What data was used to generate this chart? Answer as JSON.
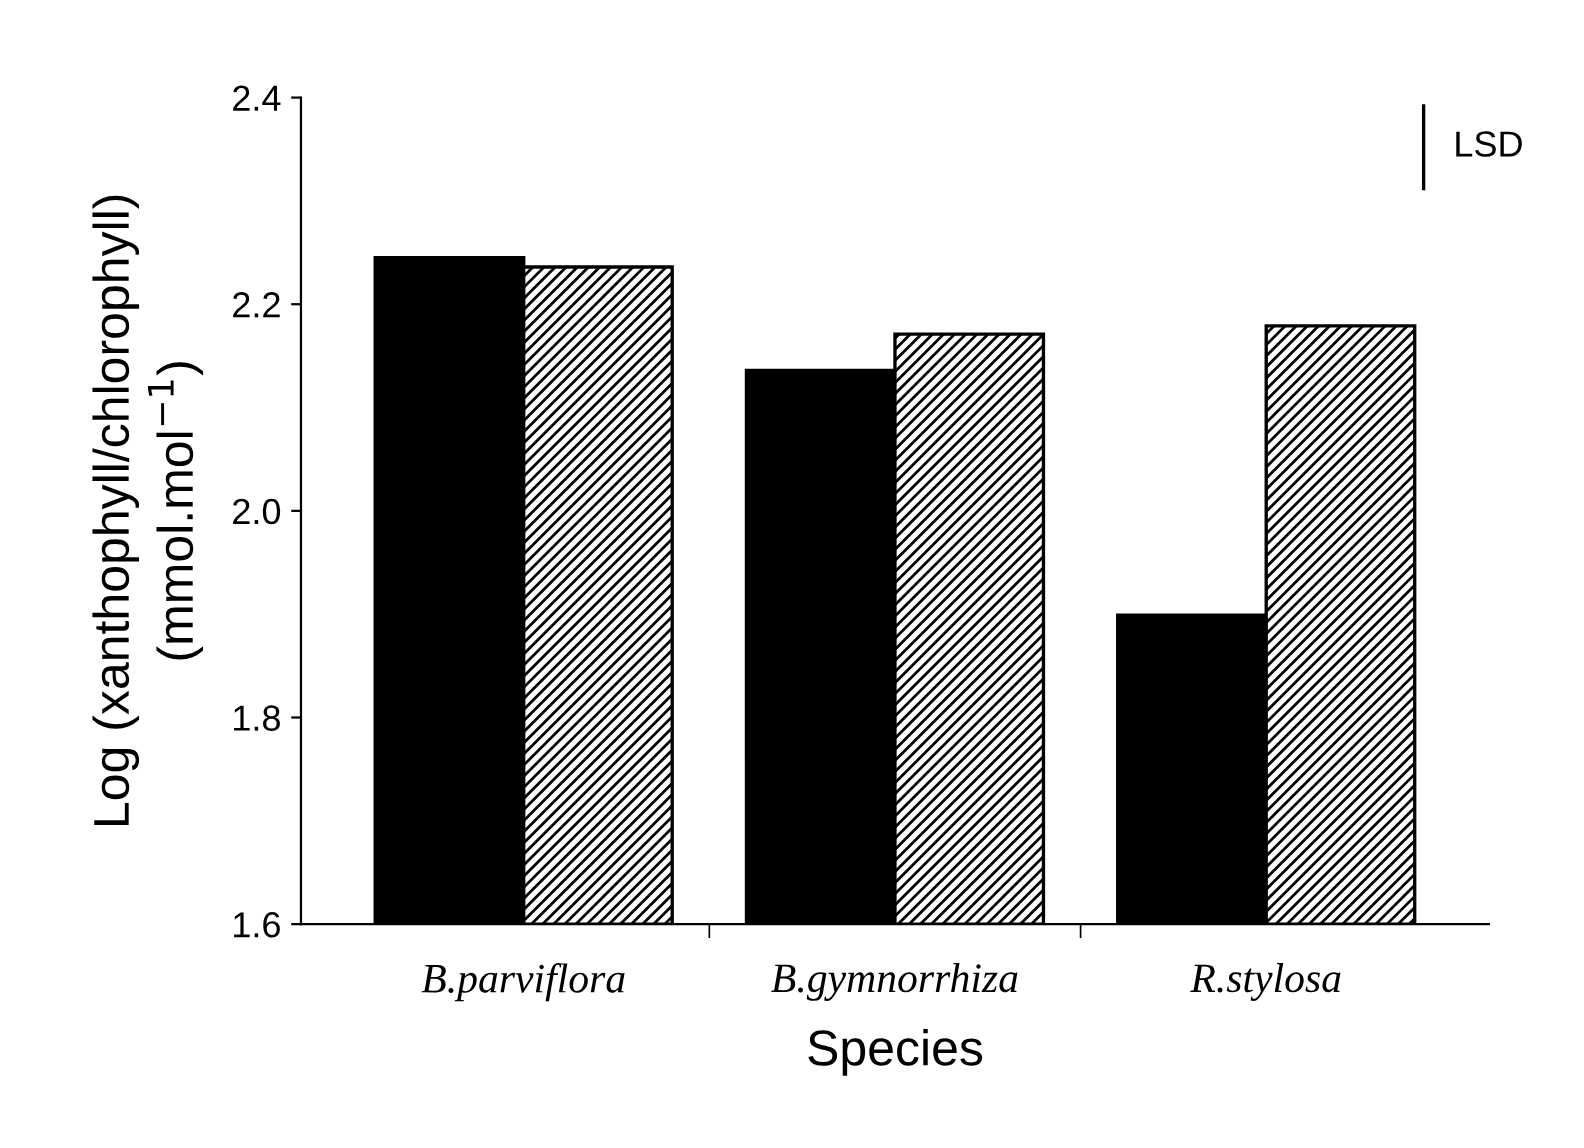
{
  "chart_data": {
    "type": "bar",
    "xlabel": "Species",
    "ylabel": "Log (xanthophyll/chlorophyll)\n(mmol.mol$^{−1}$)",
    "categories": [
      "B.parviflora",
      "B.gymnorrhiza",
      "R.stylosa"
    ],
    "series": [
      {
        "color": "#000000",
        "values": [
          2.245,
          2.136,
          1.899
        ]
      },
      {
        "color": "#000000",
        "values": [
          2.236,
          2.171,
          2.179
        ]
      }
    ],
    "ylim": [
      1.6,
      2.4
    ],
    "yticks": [
      1.6,
      1.8,
      {
        "value": 2.0,
        "label": "2.0"
      },
      2.2,
      2.4
    ],
    "grid": false,
    "legend": false,
    "annotations": [
      "LSD"
    ]
  }
}
